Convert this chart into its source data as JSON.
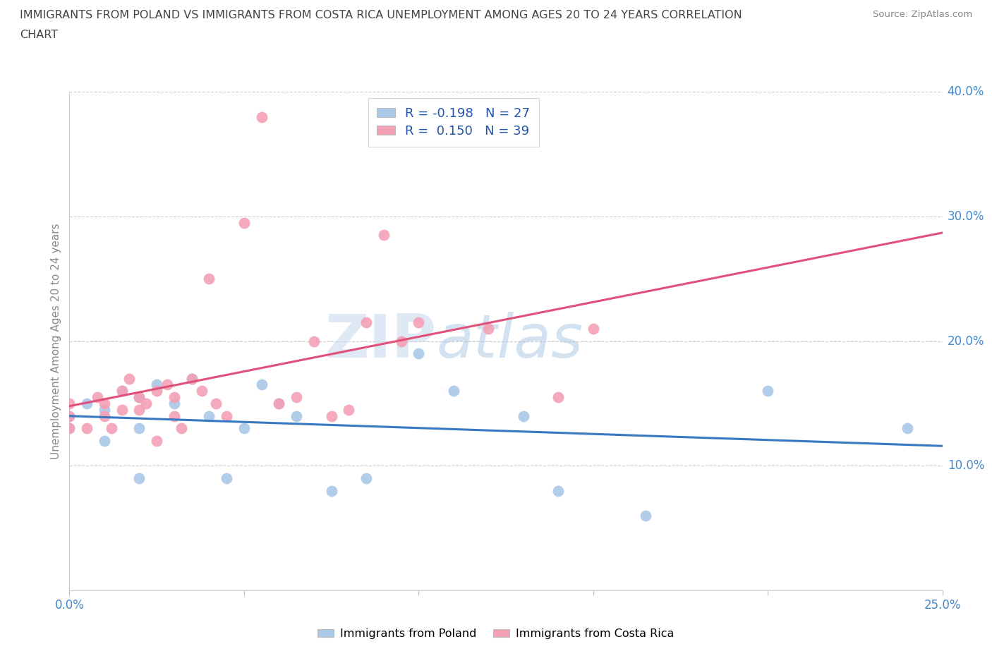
{
  "title_line1": "IMMIGRANTS FROM POLAND VS IMMIGRANTS FROM COSTA RICA UNEMPLOYMENT AMONG AGES 20 TO 24 YEARS CORRELATION",
  "title_line2": "CHART",
  "source": "Source: ZipAtlas.com",
  "ylabel": "Unemployment Among Ages 20 to 24 years",
  "xlim": [
    0.0,
    0.25
  ],
  "ylim": [
    0.0,
    0.4
  ],
  "poland_R": -0.198,
  "poland_N": 27,
  "costarica_R": 0.15,
  "costarica_N": 39,
  "poland_color": "#aac8e8",
  "costarica_color": "#f4a0b5",
  "poland_line_color": "#3878c0",
  "costarica_line_color": "#e0507a",
  "watermark_zip": "ZIP",
  "watermark_atlas": "atlas",
  "poland_x": [
    0.0,
    0.0,
    0.005,
    0.01,
    0.01,
    0.015,
    0.02,
    0.02,
    0.02,
    0.025,
    0.03,
    0.035,
    0.04,
    0.045,
    0.05,
    0.055,
    0.06,
    0.065,
    0.075,
    0.085,
    0.1,
    0.11,
    0.13,
    0.14,
    0.165,
    0.2,
    0.24
  ],
  "poland_y": [
    0.14,
    0.13,
    0.15,
    0.145,
    0.12,
    0.16,
    0.155,
    0.13,
    0.09,
    0.165,
    0.15,
    0.17,
    0.14,
    0.09,
    0.13,
    0.165,
    0.15,
    0.14,
    0.08,
    0.09,
    0.19,
    0.16,
    0.14,
    0.08,
    0.06,
    0.16,
    0.13
  ],
  "costarica_x": [
    0.0,
    0.0,
    0.0,
    0.005,
    0.008,
    0.01,
    0.01,
    0.012,
    0.015,
    0.015,
    0.017,
    0.02,
    0.02,
    0.022,
    0.025,
    0.025,
    0.028,
    0.03,
    0.03,
    0.032,
    0.035,
    0.038,
    0.04,
    0.042,
    0.045,
    0.05,
    0.055,
    0.06,
    0.065,
    0.07,
    0.075,
    0.08,
    0.085,
    0.09,
    0.095,
    0.1,
    0.12,
    0.14,
    0.15
  ],
  "costarica_y": [
    0.13,
    0.14,
    0.15,
    0.13,
    0.155,
    0.15,
    0.14,
    0.13,
    0.16,
    0.145,
    0.17,
    0.155,
    0.145,
    0.15,
    0.16,
    0.12,
    0.165,
    0.155,
    0.14,
    0.13,
    0.17,
    0.16,
    0.25,
    0.15,
    0.14,
    0.295,
    0.38,
    0.15,
    0.155,
    0.2,
    0.14,
    0.145,
    0.215,
    0.285,
    0.2,
    0.215,
    0.21,
    0.155,
    0.21
  ],
  "background_color": "#ffffff",
  "grid_color": "#cccccc",
  "title_color": "#444444",
  "axis_label_color": "#4488cc",
  "ylabel_color": "#888888"
}
